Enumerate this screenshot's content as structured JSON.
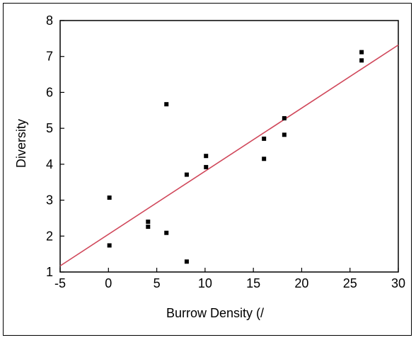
{
  "chart_data": {
    "type": "scatter",
    "title": "",
    "xlabel": "Burrow Density (/",
    "ylabel": "Diversity",
    "xlim": [
      -5,
      30
    ],
    "ylim": [
      1,
      8
    ],
    "xticks": [
      -5,
      0,
      5,
      10,
      15,
      20,
      25,
      30
    ],
    "yticks": [
      1,
      2,
      3,
      4,
      5,
      6,
      7,
      8
    ],
    "grid": false,
    "legend": "none",
    "colors": {
      "points": "#000000",
      "fit_line": "#d0475a",
      "axes": "#000000"
    },
    "points": [
      {
        "x": 0.1,
        "y": 3.07
      },
      {
        "x": 0.1,
        "y": 1.74
      },
      {
        "x": 4.1,
        "y": 2.4
      },
      {
        "x": 4.1,
        "y": 2.26
      },
      {
        "x": 6.0,
        "y": 5.67
      },
      {
        "x": 6.0,
        "y": 2.09
      },
      {
        "x": 8.1,
        "y": 3.71
      },
      {
        "x": 8.1,
        "y": 1.29
      },
      {
        "x": 10.1,
        "y": 4.23
      },
      {
        "x": 10.1,
        "y": 3.92
      },
      {
        "x": 16.1,
        "y": 4.71
      },
      {
        "x": 16.1,
        "y": 4.15
      },
      {
        "x": 18.2,
        "y": 5.28
      },
      {
        "x": 18.2,
        "y": 4.82
      },
      {
        "x": 26.2,
        "y": 7.12
      },
      {
        "x": 26.2,
        "y": 6.89
      }
    ],
    "fit_line": {
      "x": [
        -5,
        30
      ],
      "y": [
        1.17,
        7.32
      ]
    }
  }
}
